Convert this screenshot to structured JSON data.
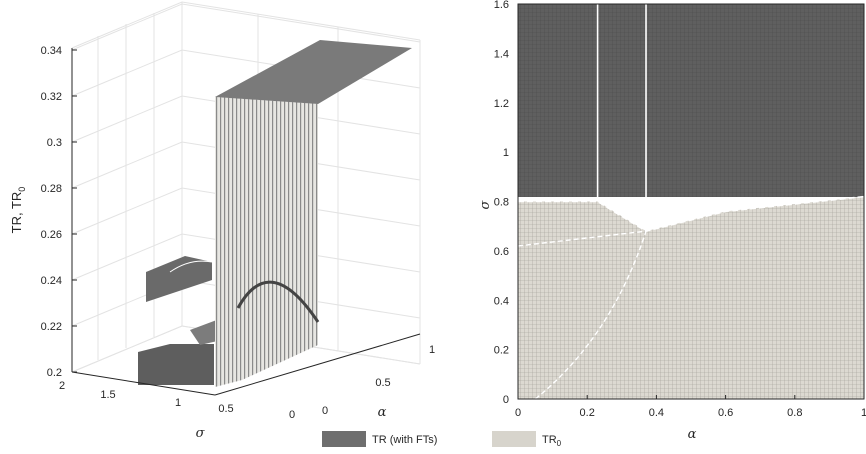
{
  "chart_data": [
    {
      "type": "surface",
      "zlabel": "TR, TR",
      "zlabel_sub": "0",
      "xlabel": "α",
      "ylabel": "σ",
      "z_ticks": [
        "0.2",
        "0.22",
        "0.24",
        "0.26",
        "0.28",
        "0.3",
        "0.32",
        "0.34"
      ],
      "sigma_ticks": [
        "2",
        "1.5",
        "1",
        "0.5",
        "0"
      ],
      "alpha_ticks": [
        "0",
        "0.5",
        "1"
      ],
      "zlim": [
        0.2,
        0.34
      ],
      "sigma_lim": [
        0,
        2
      ],
      "alpha_lim": [
        0,
        1
      ],
      "grid": true,
      "surfaces": [
        {
          "name": "TR (with FTs)",
          "color": "#6e6e6e",
          "description_region": "high sigma plateau ~0.33"
        },
        {
          "name": "TR",
          "color": "#d7d4cc",
          "description_region": "low sigma region"
        }
      ],
      "points": [
        {
          "alpha": 1.0,
          "sigma": 2.0,
          "z": 0.338
        },
        {
          "alpha": 0.37,
          "sigma": 0.8,
          "z": 0.325
        },
        {
          "alpha": 0.2,
          "sigma": 1.4,
          "z": 0.232
        },
        {
          "alpha": 0.3,
          "sigma": 0.4,
          "z": 0.235
        },
        {
          "alpha": 0.1,
          "sigma": 1.4,
          "z": 0.21
        }
      ]
    },
    {
      "type": "heatmap",
      "xlabel": "α",
      "ylabel": "σ",
      "xlim": [
        0,
        1
      ],
      "ylim": [
        0,
        1.6
      ],
      "x_ticks": [
        "0",
        "0.2",
        "0.4",
        "0.6",
        "0.8",
        "1"
      ],
      "y_ticks": [
        "0",
        "0.2",
        "0.4",
        "0.6",
        "0.8",
        "1",
        "1.2",
        "1.4",
        "1.6"
      ],
      "x_tick_values": [
        0,
        0.2,
        0.4,
        0.6,
        0.8,
        1
      ],
      "y_tick_values": [
        0,
        0.2,
        0.4,
        0.6,
        0.8,
        1,
        1.2,
        1.4,
        1.6
      ],
      "boundary": [
        {
          "alpha": 0.0,
          "sigma": 0.8
        },
        {
          "alpha": 0.23,
          "sigma": 0.8
        },
        {
          "alpha": 0.37,
          "sigma": 0.68
        },
        {
          "alpha": 0.6,
          "sigma": 0.76
        },
        {
          "alpha": 1.0,
          "sigma": 0.82
        }
      ],
      "vertical_lines": [
        0.23,
        0.37
      ],
      "upper_region": "TR (with FTs)",
      "lower_region": "TR"
    }
  ],
  "legend": {
    "items": [
      {
        "label": "TR (with FTs)",
        "color": "#6e6e6e"
      },
      {
        "label": "TR",
        "sub": "0",
        "color": "#d7d4cc"
      }
    ]
  }
}
